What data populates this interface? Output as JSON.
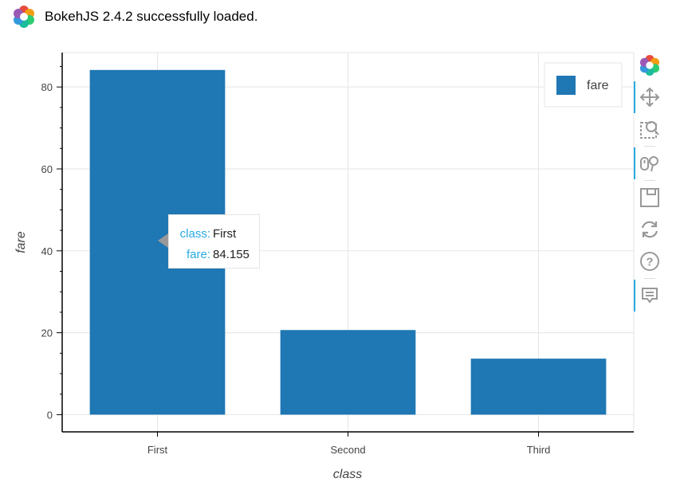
{
  "banner": {
    "text": "BokehJS 2.4.2 successfully loaded."
  },
  "chart_data": {
    "type": "bar",
    "categories": [
      "First",
      "Second",
      "Third"
    ],
    "values": [
      84.155,
      20.662,
      13.676
    ],
    "xlabel": "class",
    "ylabel": "fare",
    "ylim": [
      -4.2,
      88.4
    ],
    "yticks": [
      0,
      20,
      40,
      60,
      80
    ],
    "bar_color": "#1f77b4",
    "grid": true,
    "legend": {
      "entries": [
        "fare"
      ],
      "placement": "top-right"
    }
  },
  "tooltip": {
    "rows": [
      {
        "key": "class:",
        "value": "First"
      },
      {
        "key": "fare:",
        "value": "84.155"
      }
    ]
  },
  "toolbar": {
    "tools": [
      {
        "icon": "bokeh-logo-icon",
        "active": false
      },
      {
        "icon": "pan-icon",
        "active": true
      },
      {
        "icon": "box-zoom-icon",
        "active": false
      },
      {
        "icon": "wheel-zoom-icon",
        "active": true
      },
      {
        "icon": "save-icon",
        "active": false
      },
      {
        "icon": "reset-icon",
        "active": false
      },
      {
        "icon": "help-icon",
        "active": false
      },
      {
        "icon": "hover-icon",
        "active": true
      }
    ]
  }
}
